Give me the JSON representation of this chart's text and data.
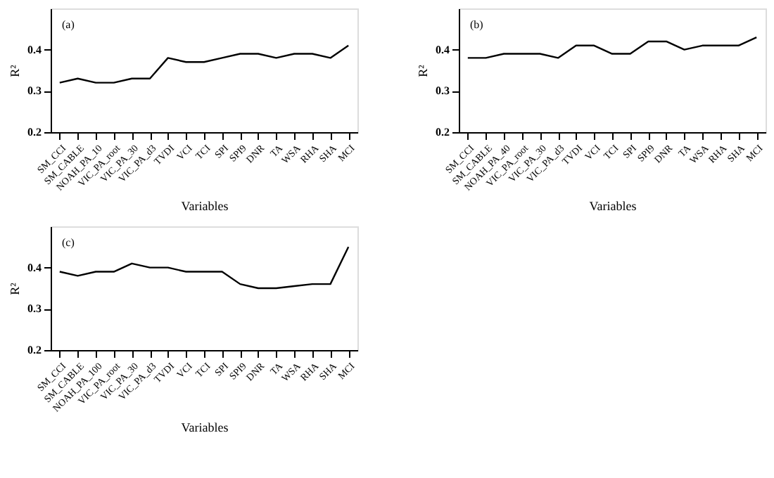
{
  "chart_data": [
    {
      "type": "line",
      "categories": [
        "SM_CCI",
        "SM_CABLE",
        "NOAH_PA_10",
        "VIC_PA_root",
        "VIC_PA_30",
        "VIC_PA_d3",
        "TVDI",
        "VCI",
        "TCI",
        "SPI",
        "SPI9",
        "DNR",
        "TA",
        "WSA",
        "RHA",
        "SHA",
        "MCI"
      ],
      "series": [
        {
          "color": "#000000",
          "values": [
            0.32,
            0.33,
            0.32,
            0.32,
            0.33,
            0.33,
            0.38,
            0.37,
            0.37,
            0.38,
            0.39,
            0.39,
            0.38,
            0.39,
            0.39,
            0.38,
            0.41
          ]
        }
      ],
      "xlabel": "Variables",
      "ylabel": "R²",
      "ylim": [
        0.2,
        0.5
      ],
      "yticks": [
        0.2,
        0.3,
        0.4
      ],
      "annotations": [
        "(a)"
      ],
      "grid": false
    },
    {
      "type": "line",
      "categories": [
        "SM_CCI",
        "SM_CABLE",
        "NOAH_PA_40",
        "VIC_PA_root",
        "VIC_PA_30",
        "VIC_PA_d3",
        "TVDI",
        "VCI",
        "TCI",
        "SPI",
        "SPI9",
        "DNR",
        "TA",
        "WSA",
        "RHA",
        "SHA",
        "MCI"
      ],
      "series": [
        {
          "color": "#000000",
          "values": [
            0.38,
            0.38,
            0.39,
            0.39,
            0.39,
            0.38,
            0.41,
            0.41,
            0.39,
            0.39,
            0.42,
            0.42,
            0.4,
            0.41,
            0.41,
            0.41,
            0.43
          ]
        }
      ],
      "xlabel": "Variables",
      "ylabel": "R²",
      "ylim": [
        0.2,
        0.5
      ],
      "yticks": [
        0.2,
        0.3,
        0.4
      ],
      "annotations": [
        "(b)"
      ],
      "grid": false
    },
    {
      "type": "line",
      "categories": [
        "SM_CCI",
        "SM_CABLE",
        "NOAH_PA_100",
        "VIC_PA_root",
        "VIC_PA_30",
        "VIC_PA_d3",
        "TVDI",
        "VCI",
        "TCI",
        "SPI",
        "SPI9",
        "DNR",
        "TA",
        "WSA",
        "RHA",
        "SHA",
        "MCI"
      ],
      "series": [
        {
          "color": "#000000",
          "values": [
            0.39,
            0.38,
            0.39,
            0.39,
            0.41,
            0.4,
            0.4,
            0.39,
            0.39,
            0.39,
            0.36,
            0.35,
            0.35,
            0.355,
            0.36,
            0.36,
            0.45
          ]
        }
      ],
      "xlabel": "Variables",
      "ylabel": "R²",
      "ylim": [
        0.2,
        0.5
      ],
      "yticks": [
        0.2,
        0.3,
        0.4
      ],
      "annotations": [
        "(c)"
      ],
      "grid": false
    }
  ]
}
